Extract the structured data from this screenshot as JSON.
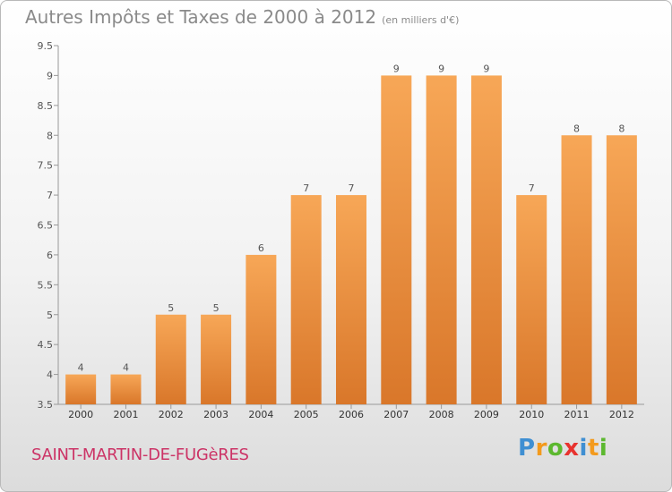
{
  "header": {
    "title": "Autres Impôts et Taxes de 2000 à 2012",
    "unit": "(en milliers d'€)"
  },
  "footer": {
    "commune": "SAINT-MARTIN-DE-FUGèRES",
    "logo_letters": [
      "P",
      "r",
      "o",
      "x",
      "i",
      "t",
      "i"
    ],
    "logo_colors": [
      "#3f8fd2",
      "#f39a1d",
      "#5cb82f",
      "#e8322e",
      "#3f8fd2",
      "#f39a1d",
      "#5cb82f"
    ]
  },
  "chart_data": {
    "type": "bar",
    "categories": [
      "2000",
      "2001",
      "2002",
      "2003",
      "2004",
      "2005",
      "2006",
      "2007",
      "2008",
      "2009",
      "2010",
      "2011",
      "2012"
    ],
    "values": [
      4,
      4,
      5,
      5,
      6,
      7,
      7,
      9,
      9,
      9,
      7,
      8,
      8
    ],
    "data_labels": [
      "4",
      "4",
      "5",
      "5",
      "6",
      "7",
      "7",
      "9",
      "9",
      "9",
      "7",
      "8",
      "8"
    ],
    "ylim": [
      3.5,
      9.5
    ],
    "yticks": [
      3.5,
      4,
      4.5,
      5,
      5.5,
      6,
      6.5,
      7,
      7.5,
      8,
      8.5,
      9,
      9.5
    ],
    "ytick_labels": [
      "3.5",
      "4",
      "4.5",
      "5",
      "5.5",
      "6",
      "6.5",
      "7",
      "7.5",
      "8",
      "8.5",
      "9",
      "9.5"
    ],
    "grid": false,
    "colors": {
      "bar_top": "#f7a757",
      "bar_bottom": "#d9772a",
      "axis": "#999999",
      "label": "#555555"
    }
  }
}
